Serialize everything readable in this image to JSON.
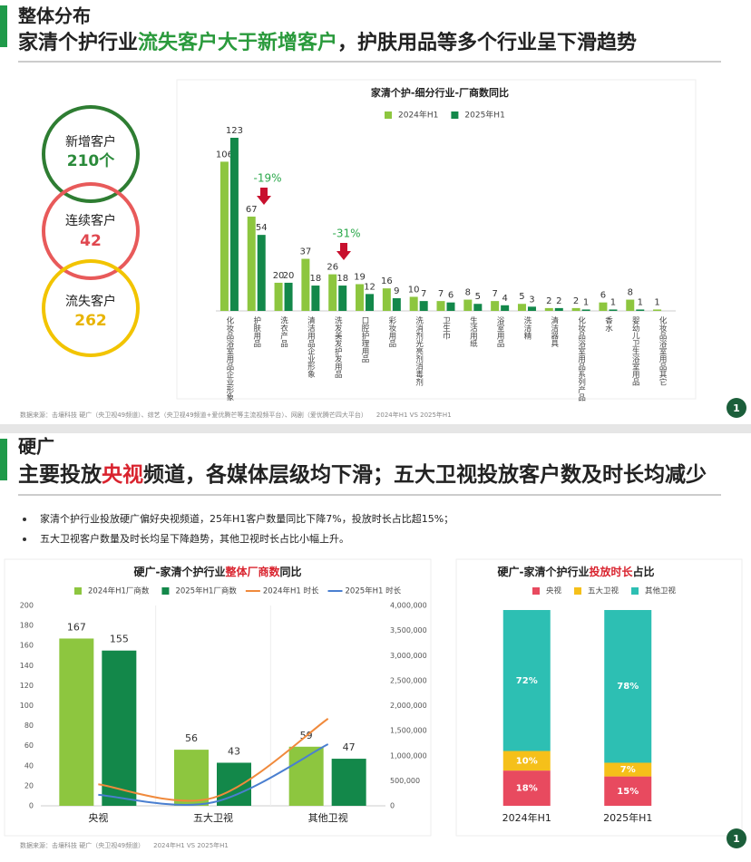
{
  "slide1": {
    "section": "整体分布",
    "headline": [
      "家清个护行业",
      "流失客户大于新增客户",
      "，护肤用品等多个行业呈下滑趋势"
    ],
    "customers": [
      {
        "label": "新增客户",
        "value": "210个"
      },
      {
        "label": "连续客户",
        "value": "42"
      },
      {
        "label": "流失客户",
        "value": "262"
      }
    ],
    "source": [
      "数据来源：击壤科技 硬广（央卫视49频道）、综艺（央卫视49频道+爱优腾芒等主流视频平台）、网剧（爱优腾芒四大平台）",
      "2024年H1 VS 2025年H1"
    ],
    "page": "1"
  },
  "slide2": {
    "section": "硬广",
    "headline": [
      "主要投放",
      "央视",
      "频道，各媒体层级均下滑；五大卫视投放客户数及时长均减少"
    ],
    "bullets": [
      "家清个护行业投放硬广偏好央视频道，25年H1客户数量同比下降7%，投放时长占比超15%；",
      "五大卫视客户数量及时长均呈下降趋势，其他卫视时长占比小幅上升。"
    ],
    "source": [
      "数据来源：击壤科技 硬广（央卫视49频道）",
      "2024年H1 VS 2025年H1"
    ],
    "page": "1"
  },
  "chart_data": [
    {
      "type": "bar",
      "title": "家清个护-细分行业-厂商数同比",
      "categories": [
        "化妆品浴室用品企业形象",
        "护肤用品",
        "洗衣产品",
        "清洁用品企业形象",
        "洗发美发护发用品",
        "口腔护理用品",
        "彩妆用品",
        "洗消剂光亮剂消毒剂",
        "卫生巾",
        "生活用纸",
        "浴室用品",
        "洗洁精",
        "清洁器具",
        "化妆品浴室用品系列产品",
        "香水",
        "婴幼儿卫生浴室用品",
        "化妆品浴室用品其它"
      ],
      "series": [
        {
          "name": "2024年H1",
          "color": "#8dc63f",
          "values": [
            106,
            67,
            20,
            37,
            26,
            19,
            16,
            10,
            7,
            8,
            7,
            5,
            2,
            2,
            6,
            8,
            1
          ]
        },
        {
          "name": "2025年H1",
          "color": "#13884a",
          "values": [
            123,
            54,
            20,
            18,
            18,
            12,
            9,
            7,
            6,
            5,
            4,
            3,
            2,
            1,
            1,
            1,
            null
          ]
        }
      ],
      "annotations": [
        "-19%",
        "-31%"
      ]
    },
    {
      "type": "combo",
      "title": [
        "硬广-家清个护行业",
        "整体厂商数",
        "同比"
      ],
      "categories": [
        "央视",
        "五大卫视",
        "其他卫视"
      ],
      "series": [
        {
          "name": "2024年H1厂商数",
          "type": "bar",
          "color": "#8dc63f",
          "values": [
            167,
            56,
            59
          ]
        },
        {
          "name": "2025年H1厂商数",
          "type": "bar",
          "color": "#13884a",
          "values": [
            155,
            43,
            47
          ]
        },
        {
          "name": "2024年H1 时长",
          "type": "line",
          "axis": "y2",
          "color": "#f08a3c",
          "values": [
            430000,
            160000,
            1740000
          ]
        },
        {
          "name": "2025年H1 时长",
          "type": "line",
          "axis": "y2",
          "color": "#4a7fd0",
          "values": [
            220000,
            70000,
            1230000
          ]
        }
      ],
      "ylim": [
        0,
        200
      ],
      "yticks": [
        0,
        20,
        40,
        60,
        80,
        100,
        120,
        140,
        160,
        180,
        200
      ],
      "y2lim": [
        0,
        4000000
      ],
      "y2ticks": [
        0,
        {
          "value": 500000,
          "label": "500,000"
        },
        {
          "value": 1000000,
          "label": "1,000,000"
        },
        {
          "value": 1500000,
          "label": "1,500,000"
        },
        {
          "value": 2000000,
          "label": "2,000,000"
        },
        {
          "value": 2500000,
          "label": "2,500,000"
        },
        {
          "value": 3000000,
          "label": "3,000,000"
        },
        {
          "value": 3500000,
          "label": "3,500,000"
        },
        {
          "value": 4000000,
          "label": "4,000,000"
        }
      ]
    },
    {
      "type": "stacked_bar",
      "title": [
        "硬广-家清个护行业",
        "投放时长",
        "占比"
      ],
      "categories": [
        "2024年H1",
        "2025年H1"
      ],
      "series": [
        {
          "name": "央视",
          "color": "#e84a5f",
          "values": [
            18,
            15
          ],
          "value_labels": [
            "18%",
            "15%"
          ]
        },
        {
          "name": "五大卫视",
          "color": "#f5c01a",
          "values": [
            10,
            7
          ],
          "value_labels": [
            "10%",
            "7%"
          ]
        },
        {
          "name": "其他卫视",
          "color": "#2dbfb3",
          "values": [
            72,
            78
          ],
          "value_labels": [
            "72%",
            "78%"
          ]
        }
      ]
    }
  ]
}
